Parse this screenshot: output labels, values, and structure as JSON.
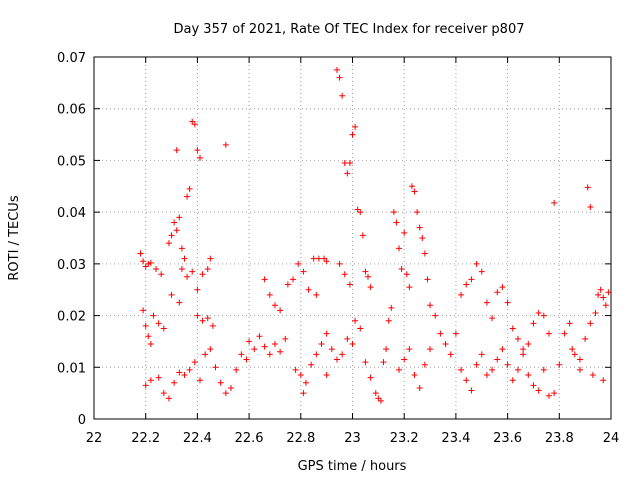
{
  "chart_data": {
    "type": "scatter",
    "title": "Day 357 of 2021, Rate Of TEC Index for receiver p807",
    "xlabel": "GPS time / hours",
    "ylabel": "ROTI / TECUs",
    "xlim": [
      22,
      24
    ],
    "ylim": [
      0,
      0.07
    ],
    "x_ticks": [
      "22",
      "22.2",
      "22.4",
      "22.6",
      "22.8",
      "23",
      "23.2",
      "23.4",
      "23.6",
      "23.8",
      "24"
    ],
    "y_ticks": [
      "0",
      "0.01",
      "0.02",
      "0.03",
      "0.04",
      "0.05",
      "0.06",
      "0.07"
    ],
    "grid": true,
    "marker": "+",
    "color": "#ff0000",
    "series": [
      {
        "name": "p807",
        "points": [
          [
            22.18,
            0.032
          ],
          [
            22.19,
            0.0305
          ],
          [
            22.2,
            0.0295
          ],
          [
            22.21,
            0.03
          ],
          [
            22.22,
            0.0302
          ],
          [
            22.24,
            0.029
          ],
          [
            22.26,
            0.028
          ],
          [
            22.19,
            0.021
          ],
          [
            22.2,
            0.018
          ],
          [
            22.21,
            0.016
          ],
          [
            22.22,
            0.0145
          ],
          [
            22.23,
            0.02
          ],
          [
            22.25,
            0.0185
          ],
          [
            22.27,
            0.0175
          ],
          [
            22.29,
            0.034
          ],
          [
            22.3,
            0.0355
          ],
          [
            22.31,
            0.038
          ],
          [
            22.32,
            0.0365
          ],
          [
            22.32,
            0.052
          ],
          [
            22.33,
            0.039
          ],
          [
            22.34,
            0.033
          ],
          [
            22.35,
            0.031
          ],
          [
            22.36,
            0.043
          ],
          [
            22.37,
            0.0445
          ],
          [
            22.38,
            0.0575
          ],
          [
            22.39,
            0.057
          ],
          [
            22.4,
            0.052
          ],
          [
            22.41,
            0.0505
          ],
          [
            22.34,
            0.029
          ],
          [
            22.36,
            0.0275
          ],
          [
            22.38,
            0.0285
          ],
          [
            22.4,
            0.025
          ],
          [
            22.42,
            0.028
          ],
          [
            22.44,
            0.029
          ],
          [
            22.45,
            0.031
          ],
          [
            22.4,
            0.02
          ],
          [
            22.42,
            0.019
          ],
          [
            22.44,
            0.0195
          ],
          [
            22.46,
            0.018
          ],
          [
            22.51,
            0.053
          ],
          [
            22.3,
            0.024
          ],
          [
            22.33,
            0.0225
          ],
          [
            22.2,
            0.0065
          ],
          [
            22.22,
            0.0075
          ],
          [
            22.25,
            0.008
          ],
          [
            22.27,
            0.005
          ],
          [
            22.29,
            0.004
          ],
          [
            22.31,
            0.007
          ],
          [
            22.33,
            0.009
          ],
          [
            22.35,
            0.0085
          ],
          [
            22.37,
            0.0095
          ],
          [
            22.39,
            0.011
          ],
          [
            22.41,
            0.0075
          ],
          [
            22.43,
            0.0125
          ],
          [
            22.45,
            0.0135
          ],
          [
            22.47,
            0.01
          ],
          [
            22.49,
            0.007
          ],
          [
            22.51,
            0.005
          ],
          [
            22.53,
            0.006
          ],
          [
            22.55,
            0.0095
          ],
          [
            22.57,
            0.0125
          ],
          [
            22.59,
            0.0115
          ],
          [
            22.6,
            0.015
          ],
          [
            22.62,
            0.0135
          ],
          [
            22.64,
            0.016
          ],
          [
            22.66,
            0.014
          ],
          [
            22.68,
            0.0125
          ],
          [
            22.7,
            0.0145
          ],
          [
            22.72,
            0.013
          ],
          [
            22.74,
            0.0155
          ],
          [
            22.66,
            0.027
          ],
          [
            22.68,
            0.024
          ],
          [
            22.7,
            0.022
          ],
          [
            22.72,
            0.021
          ],
          [
            22.75,
            0.026
          ],
          [
            22.77,
            0.027
          ],
          [
            22.79,
            0.03
          ],
          [
            22.81,
            0.0285
          ],
          [
            22.83,
            0.025
          ],
          [
            22.85,
            0.031
          ],
          [
            22.87,
            0.031
          ],
          [
            22.89,
            0.031
          ],
          [
            22.9,
            0.0305
          ],
          [
            22.86,
            0.024
          ],
          [
            22.78,
            0.0095
          ],
          [
            22.8,
            0.0085
          ],
          [
            22.82,
            0.007
          ],
          [
            22.84,
            0.0105
          ],
          [
            22.86,
            0.0125
          ],
          [
            22.88,
            0.0145
          ],
          [
            22.9,
            0.0165
          ],
          [
            22.92,
            0.0135
          ],
          [
            22.94,
            0.0115
          ],
          [
            22.96,
            0.0125
          ],
          [
            22.98,
            0.0155
          ],
          [
            23.0,
            0.0145
          ],
          [
            22.81,
            0.005
          ],
          [
            22.9,
            0.0085
          ],
          [
            22.94,
            0.0675
          ],
          [
            22.95,
            0.066
          ],
          [
            22.96,
            0.0625
          ],
          [
            22.97,
            0.0495
          ],
          [
            22.98,
            0.0475
          ],
          [
            22.99,
            0.0495
          ],
          [
            23.0,
            0.055
          ],
          [
            23.01,
            0.0565
          ],
          [
            23.02,
            0.0405
          ],
          [
            23.03,
            0.04
          ],
          [
            23.04,
            0.0355
          ],
          [
            23.05,
            0.0285
          ],
          [
            23.06,
            0.0275
          ],
          [
            23.07,
            0.0255
          ],
          [
            22.95,
            0.03
          ],
          [
            22.97,
            0.028
          ],
          [
            22.99,
            0.026
          ],
          [
            23.01,
            0.019
          ],
          [
            23.03,
            0.0175
          ],
          [
            23.05,
            0.011
          ],
          [
            23.07,
            0.008
          ],
          [
            23.09,
            0.005
          ],
          [
            23.1,
            0.004
          ],
          [
            23.11,
            0.0035
          ],
          [
            23.12,
            0.011
          ],
          [
            23.13,
            0.0135
          ],
          [
            23.14,
            0.019
          ],
          [
            23.15,
            0.0215
          ],
          [
            23.16,
            0.04
          ],
          [
            23.17,
            0.038
          ],
          [
            23.18,
            0.033
          ],
          [
            23.19,
            0.029
          ],
          [
            23.2,
            0.036
          ],
          [
            23.21,
            0.028
          ],
          [
            23.22,
            0.0255
          ],
          [
            23.23,
            0.045
          ],
          [
            23.24,
            0.044
          ],
          [
            23.25,
            0.04
          ],
          [
            23.26,
            0.037
          ],
          [
            23.27,
            0.035
          ],
          [
            23.28,
            0.032
          ],
          [
            23.29,
            0.027
          ],
          [
            23.18,
            0.0095
          ],
          [
            23.2,
            0.0115
          ],
          [
            23.22,
            0.0135
          ],
          [
            23.24,
            0.0085
          ],
          [
            23.26,
            0.006
          ],
          [
            23.28,
            0.0105
          ],
          [
            23.3,
            0.0135
          ],
          [
            23.3,
            0.022
          ],
          [
            23.32,
            0.02
          ],
          [
            23.34,
            0.0165
          ],
          [
            23.36,
            0.0145
          ],
          [
            23.38,
            0.0125
          ],
          [
            23.4,
            0.0165
          ],
          [
            23.42,
            0.024
          ],
          [
            23.44,
            0.026
          ],
          [
            23.46,
            0.027
          ],
          [
            23.48,
            0.03
          ],
          [
            23.5,
            0.0285
          ],
          [
            23.52,
            0.0225
          ],
          [
            23.54,
            0.0195
          ],
          [
            23.56,
            0.0245
          ],
          [
            23.58,
            0.0255
          ],
          [
            23.6,
            0.0225
          ],
          [
            23.62,
            0.0175
          ],
          [
            23.64,
            0.0155
          ],
          [
            23.66,
            0.0135
          ],
          [
            23.68,
            0.0145
          ],
          [
            23.7,
            0.0185
          ],
          [
            23.42,
            0.0095
          ],
          [
            23.44,
            0.0075
          ],
          [
            23.46,
            0.0055
          ],
          [
            23.48,
            0.0105
          ],
          [
            23.5,
            0.0125
          ],
          [
            23.52,
            0.0085
          ],
          [
            23.54,
            0.0095
          ],
          [
            23.56,
            0.0115
          ],
          [
            23.58,
            0.0135
          ],
          [
            23.6,
            0.0105
          ],
          [
            23.62,
            0.0075
          ],
          [
            23.64,
            0.0095
          ],
          [
            23.66,
            0.0125
          ],
          [
            23.68,
            0.0085
          ],
          [
            23.7,
            0.0065
          ],
          [
            23.72,
            0.0055
          ],
          [
            23.74,
            0.0095
          ],
          [
            23.76,
            0.0045
          ],
          [
            23.78,
            0.005
          ],
          [
            23.78,
            0.0418
          ],
          [
            23.8,
            0.0105
          ],
          [
            23.82,
            0.0165
          ],
          [
            23.84,
            0.0185
          ],
          [
            23.86,
            0.0125
          ],
          [
            23.88,
            0.0095
          ],
          [
            23.9,
            0.0155
          ],
          [
            23.91,
            0.0448
          ],
          [
            23.92,
            0.041
          ],
          [
            23.92,
            0.0185
          ],
          [
            23.94,
            0.0205
          ],
          [
            23.95,
            0.024
          ],
          [
            23.96,
            0.025
          ],
          [
            23.97,
            0.0235
          ],
          [
            23.98,
            0.022
          ],
          [
            23.99,
            0.0245
          ],
          [
            23.72,
            0.0205
          ],
          [
            23.74,
            0.02
          ],
          [
            23.76,
            0.0165
          ],
          [
            23.85,
            0.0135
          ],
          [
            23.88,
            0.0115
          ],
          [
            23.93,
            0.0085
          ],
          [
            23.97,
            0.0075
          ]
        ]
      }
    ]
  }
}
